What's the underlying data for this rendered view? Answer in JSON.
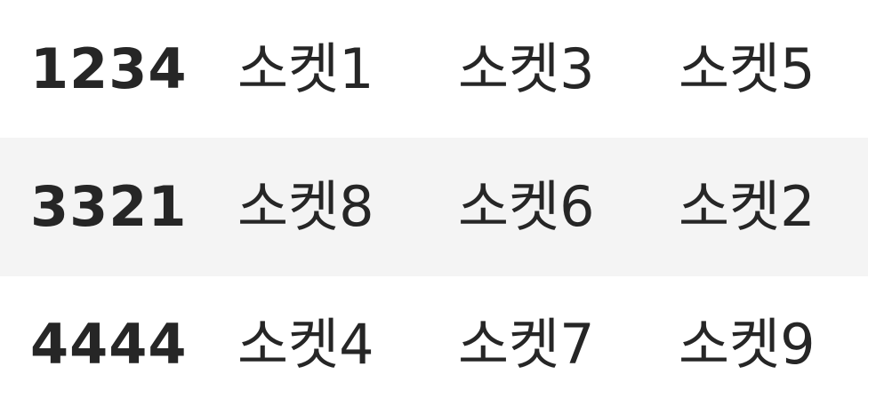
{
  "table": {
    "rows": [
      {
        "id": "1234",
        "values": [
          "소켓1",
          "소켓3",
          "소켓5"
        ],
        "striped": false
      },
      {
        "id": "3321",
        "values": [
          "소켓8",
          "소켓6",
          "소켓2"
        ],
        "striped": true
      },
      {
        "id": "4444",
        "values": [
          "소켓4",
          "소켓7",
          "소켓9"
        ],
        "striped": false
      }
    ],
    "stripe_color": "#f4f4f4",
    "text_color": "#262626"
  }
}
